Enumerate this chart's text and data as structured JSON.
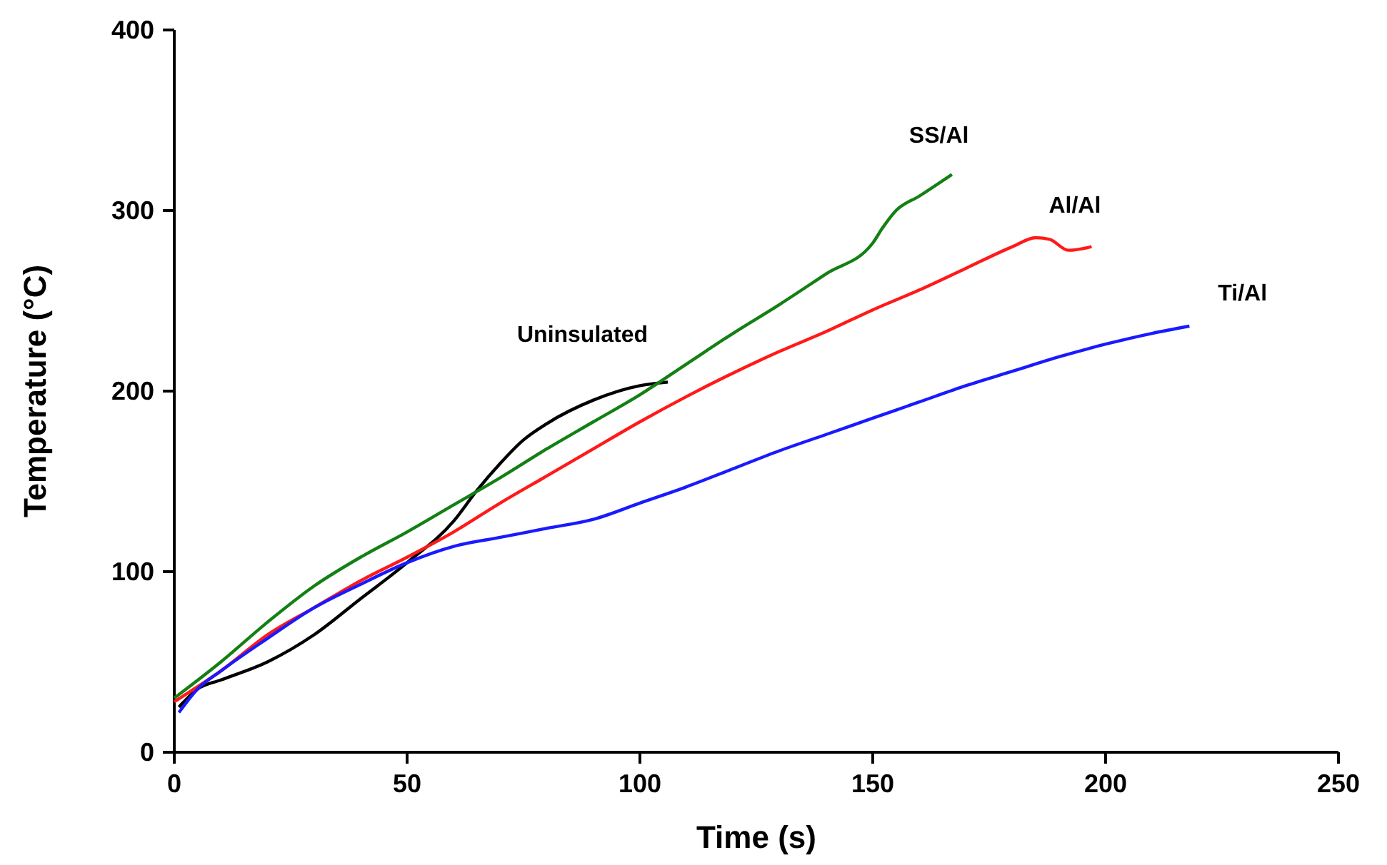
{
  "chart_data": {
    "type": "line",
    "xlabel": "Time (s)",
    "ylabel": "Temperature (°C)",
    "xlim": [
      0,
      250
    ],
    "ylim": [
      0,
      400
    ],
    "xticks": [
      0,
      50,
      100,
      150,
      200,
      250
    ],
    "yticks": [
      0,
      100,
      200,
      300,
      400
    ],
    "grid": false,
    "legend": false,
    "marker": "none",
    "line_style": "solid",
    "series": [
      {
        "name": "Uninsulated",
        "color": "#000000",
        "x": [
          1,
          5,
          10,
          20,
          30,
          40,
          50,
          60,
          65,
          70,
          75,
          80,
          90,
          100,
          106
        ],
        "values": [
          25,
          35,
          40,
          50,
          65,
          85,
          105,
          128,
          145,
          160,
          173,
          182,
          195,
          203,
          205
        ]
      },
      {
        "name": "SS/Al",
        "color": "#138013",
        "x": [
          0,
          10,
          20,
          30,
          40,
          50,
          60,
          70,
          80,
          90,
          100,
          110,
          120,
          130,
          140,
          150,
          152,
          155,
          160,
          167
        ],
        "values": [
          30,
          50,
          72,
          92,
          108,
          122,
          137,
          152,
          168,
          183,
          198,
          215,
          232,
          248,
          265,
          282,
          290,
          300,
          308,
          320
        ]
      },
      {
        "name": "Al/Al",
        "color": "#ff1a1a",
        "x": [
          0,
          10,
          20,
          30,
          40,
          50,
          60,
          70,
          80,
          90,
          100,
          110,
          120,
          130,
          140,
          150,
          160,
          170,
          180,
          185,
          188,
          192,
          197
        ],
        "values": [
          28,
          45,
          65,
          80,
          95,
          108,
          122,
          138,
          153,
          168,
          183,
          197,
          210,
          222,
          233,
          245,
          256,
          268,
          280,
          285,
          284,
          278,
          280
        ]
      },
      {
        "name": "Ti/Al",
        "color": "#1a1aff",
        "x": [
          1,
          5,
          10,
          20,
          30,
          40,
          50,
          60,
          70,
          80,
          90,
          100,
          110,
          120,
          130,
          140,
          150,
          160,
          170,
          180,
          190,
          200,
          210,
          218
        ],
        "values": [
          22,
          35,
          45,
          63,
          80,
          93,
          105,
          114,
          119,
          124,
          129,
          138,
          147,
          157,
          167,
          176,
          185,
          194,
          203,
          211,
          219,
          226,
          232,
          236
        ]
      }
    ]
  }
}
